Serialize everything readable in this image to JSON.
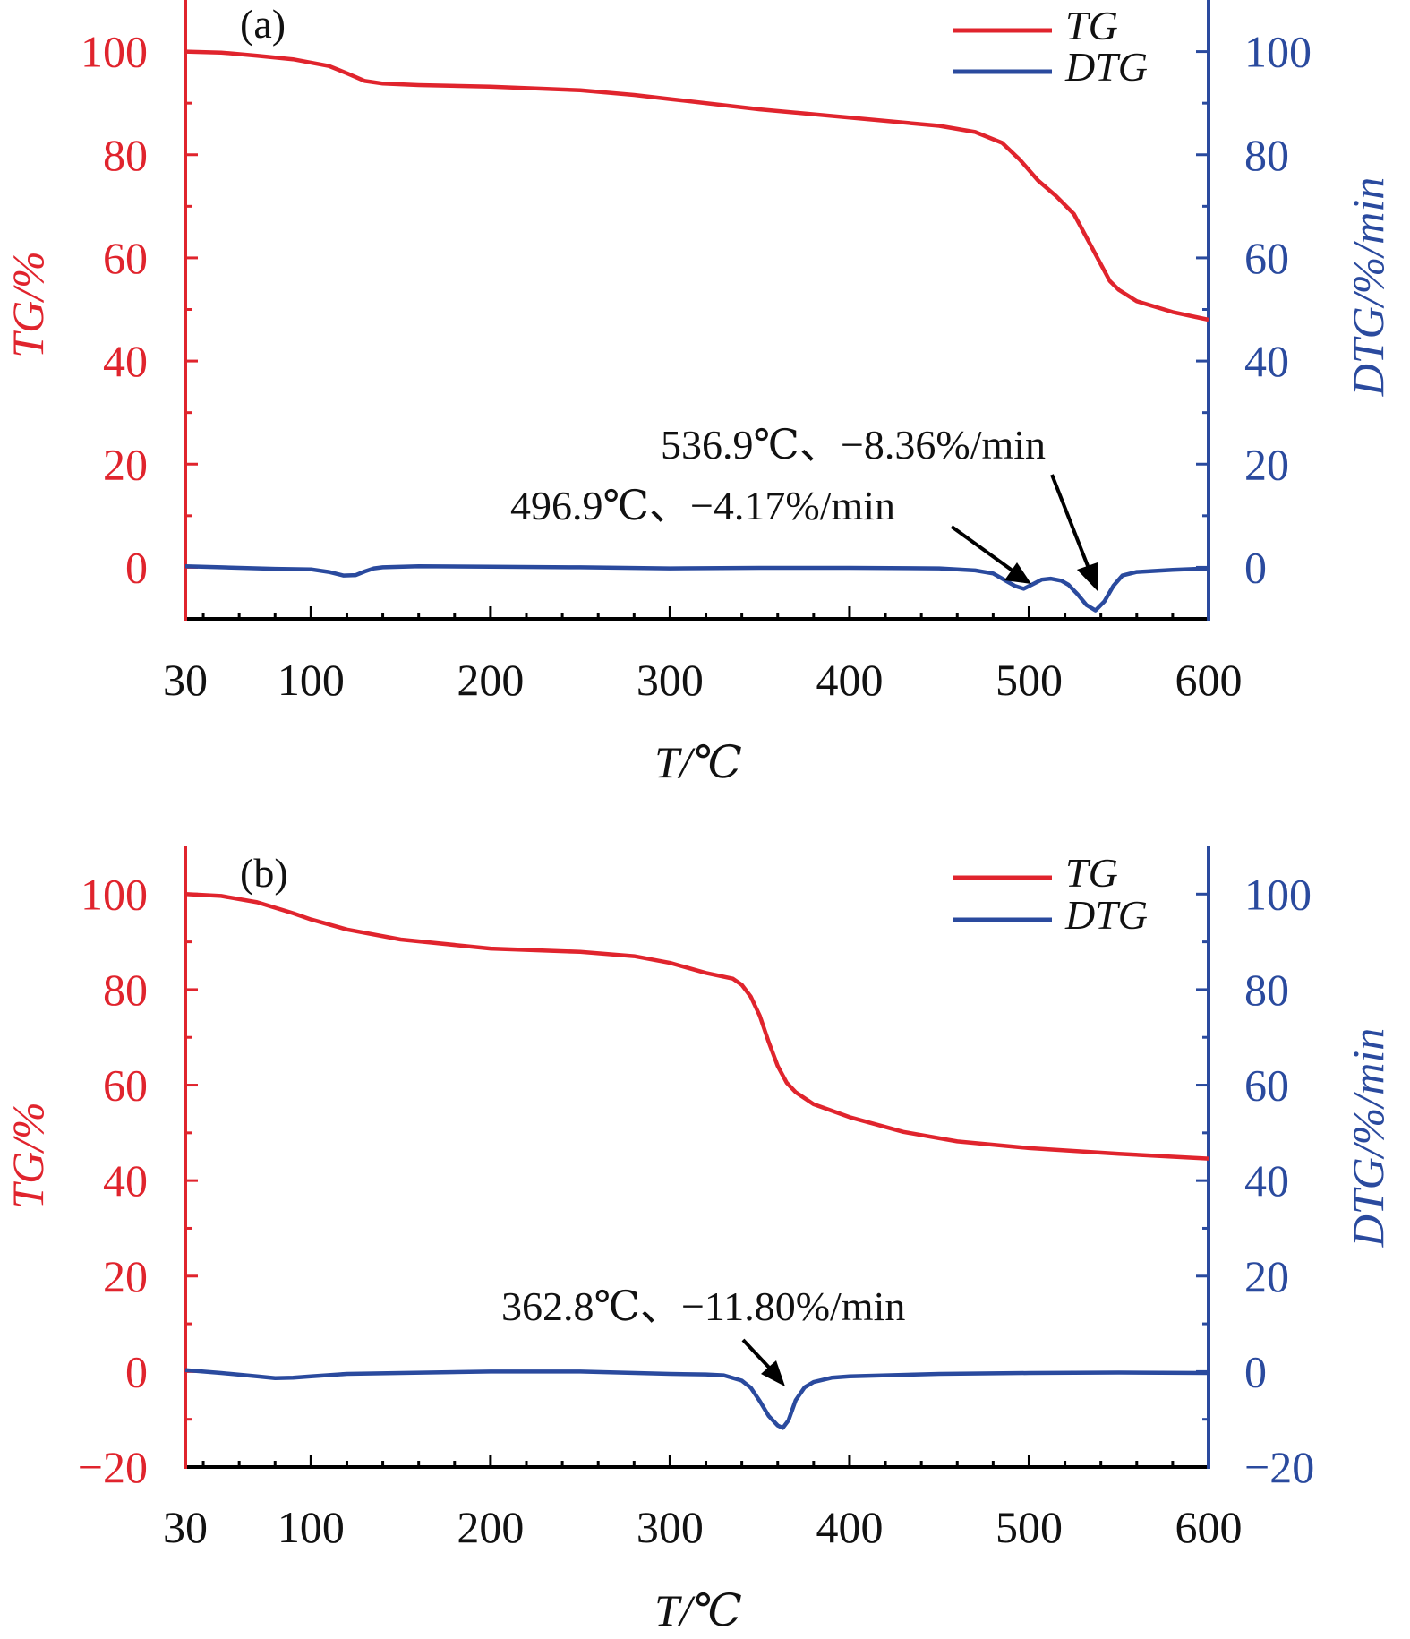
{
  "colors": {
    "tg": "#e0242d",
    "dtg": "#2a4a9e",
    "text": "#111111",
    "arrow": "#000000",
    "axis_bottom": "#000000"
  },
  "chart_data": [
    {
      "type": "line",
      "panel_label": "(a)",
      "xlabel": "T/℃",
      "ylabel_left": "TG/%",
      "ylabel_right": "DTG/%/min",
      "xlim": [
        30,
        600
      ],
      "ylim_left": [
        -10,
        110
      ],
      "ylim_right": [
        -10,
        110
      ],
      "xticks": [
        30,
        100,
        200,
        300,
        400,
        500,
        600
      ],
      "yticks_left": [
        0,
        20,
        40,
        60,
        80,
        100
      ],
      "yticks_right": [
        0,
        20,
        40,
        60,
        80,
        100
      ],
      "legend": {
        "position": "top-right",
        "entries": [
          "TG",
          "DTG"
        ]
      },
      "series": [
        {
          "name": "TG",
          "axis": "left",
          "x": [
            30,
            50,
            70,
            90,
            110,
            120,
            130,
            140,
            160,
            200,
            250,
            280,
            300,
            350,
            400,
            450,
            470,
            485,
            495,
            505,
            515,
            525,
            535,
            545,
            550,
            560,
            580,
            600
          ],
          "y": [
            100,
            99.8,
            99.2,
            98.5,
            97.2,
            95.8,
            94.3,
            93.8,
            93.5,
            93.2,
            92.5,
            91.6,
            90.8,
            88.8,
            87.2,
            85.6,
            84.4,
            82.3,
            79.0,
            75.0,
            72.0,
            68.5,
            62.0,
            55.5,
            53.8,
            51.6,
            49.5,
            48.0
          ]
        },
        {
          "name": "DTG",
          "axis": "right",
          "x": [
            30,
            50,
            80,
            100,
            110,
            118,
            125,
            130,
            135,
            140,
            160,
            200,
            250,
            300,
            350,
            400,
            450,
            470,
            480,
            488,
            492,
            497,
            502,
            507,
            512,
            518,
            522,
            527,
            532,
            537,
            542,
            547,
            552,
            560,
            580,
            600
          ],
          "y": [
            0.2,
            0.0,
            -0.3,
            -0.4,
            -0.9,
            -1.6,
            -1.5,
            -0.8,
            -0.2,
            0.0,
            0.2,
            0.1,
            0.0,
            -0.2,
            -0.1,
            -0.1,
            -0.2,
            -0.6,
            -1.2,
            -2.8,
            -3.6,
            -4.17,
            -3.3,
            -2.4,
            -2.2,
            -2.6,
            -3.4,
            -5.2,
            -7.3,
            -8.36,
            -6.6,
            -3.6,
            -1.6,
            -0.9,
            -0.5,
            -0.2
          ]
        }
      ],
      "annotations": [
        {
          "text": "536.9℃、−8.36%/min",
          "x": 536.9,
          "y": -8.36
        },
        {
          "text": "496.9℃、−4.17%/min",
          "x": 496.9,
          "y": -4.17
        }
      ]
    },
    {
      "type": "line",
      "panel_label": "(b)",
      "xlabel": "T/℃",
      "ylabel_left": "TG/%",
      "ylabel_right": "DTG/%/min",
      "xlim": [
        30,
        600
      ],
      "ylim_left": [
        -20,
        110
      ],
      "ylim_right": [
        -20,
        110
      ],
      "xticks": [
        30,
        100,
        200,
        300,
        400,
        500,
        600
      ],
      "yticks_left": [
        -20,
        0,
        20,
        40,
        60,
        80,
        100
      ],
      "yticks_right": [
        -20,
        0,
        20,
        40,
        60,
        80,
        100
      ],
      "legend": {
        "position": "top-right",
        "entries": [
          "TG",
          "DTG"
        ]
      },
      "series": [
        {
          "name": "TG",
          "axis": "left",
          "x": [
            30,
            50,
            70,
            90,
            100,
            120,
            150,
            200,
            250,
            280,
            300,
            320,
            335,
            340,
            345,
            350,
            355,
            360,
            365,
            370,
            380,
            400,
            430,
            460,
            500,
            550,
            600
          ],
          "y": [
            100,
            99.6,
            98.3,
            96.0,
            94.7,
            92.6,
            90.5,
            88.6,
            87.9,
            87.0,
            85.6,
            83.5,
            82.3,
            81.0,
            78.5,
            74.5,
            69.0,
            64.0,
            60.5,
            58.5,
            56.0,
            53.3,
            50.2,
            48.2,
            46.8,
            45.6,
            44.6
          ]
        },
        {
          "name": "DTG",
          "axis": "right",
          "x": [
            30,
            50,
            70,
            80,
            90,
            100,
            120,
            150,
            200,
            250,
            300,
            320,
            330,
            340,
            345,
            350,
            355,
            360,
            362.8,
            366,
            370,
            375,
            380,
            390,
            400,
            450,
            500,
            550,
            600
          ],
          "y": [
            0.3,
            -0.3,
            -1.0,
            -1.4,
            -1.3,
            -1.0,
            -0.5,
            -0.3,
            0.0,
            0.0,
            -0.5,
            -0.6,
            -0.8,
            -1.9,
            -3.4,
            -6.2,
            -9.3,
            -11.3,
            -11.8,
            -10.2,
            -6.0,
            -3.3,
            -2.2,
            -1.3,
            -1.0,
            -0.5,
            -0.3,
            -0.2,
            -0.3
          ]
        }
      ],
      "annotations": [
        {
          "text": "362.8℃、−11.80%/min",
          "x": 362.8,
          "y": -11.8
        }
      ]
    }
  ]
}
